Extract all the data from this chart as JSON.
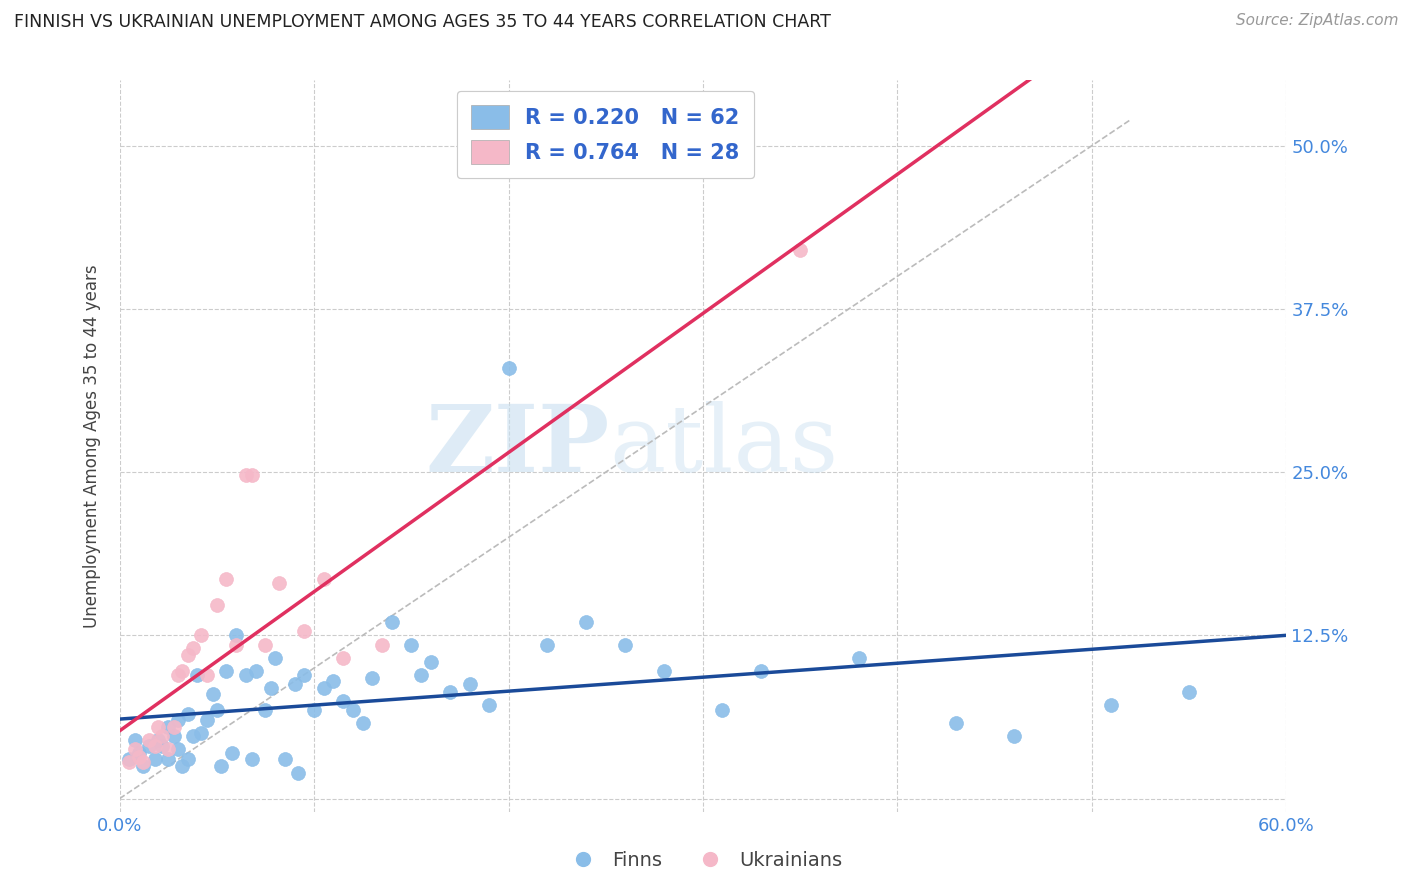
{
  "title": "FINNISH VS UKRAINIAN UNEMPLOYMENT AMONG AGES 35 TO 44 YEARS CORRELATION CHART",
  "source": "Source: ZipAtlas.com",
  "ylabel": "Unemployment Among Ages 35 to 44 years",
  "xlim": [
    0.0,
    0.6
  ],
  "ylim": [
    -0.01,
    0.55
  ],
  "xticks": [
    0.0,
    0.1,
    0.2,
    0.3,
    0.4,
    0.5,
    0.6
  ],
  "xticklabels": [
    "0.0%",
    "",
    "",
    "",
    "",
    "",
    "60.0%"
  ],
  "yticks": [
    0.0,
    0.125,
    0.25,
    0.375,
    0.5
  ],
  "yticklabels": [
    "",
    "12.5%",
    "25.0%",
    "37.5%",
    "50.0%"
  ],
  "grid_color": "#cccccc",
  "background_color": "#ffffff",
  "watermark_zip": "ZIP",
  "watermark_atlas": "atlas",
  "finn_color": "#8abde8",
  "ukr_color": "#f5b8c8",
  "finn_line_color": "#1a4a99",
  "ukr_line_color": "#e03060",
  "diagonal_color": "#bbbbbb",
  "finns_x": [
    0.005,
    0.008,
    0.01,
    0.012,
    0.015,
    0.018,
    0.02,
    0.022,
    0.025,
    0.025,
    0.028,
    0.03,
    0.03,
    0.032,
    0.035,
    0.035,
    0.038,
    0.04,
    0.042,
    0.045,
    0.048,
    0.05,
    0.052,
    0.055,
    0.058,
    0.06,
    0.065,
    0.068,
    0.07,
    0.075,
    0.078,
    0.08,
    0.085,
    0.09,
    0.092,
    0.095,
    0.1,
    0.105,
    0.11,
    0.115,
    0.12,
    0.125,
    0.13,
    0.14,
    0.15,
    0.155,
    0.16,
    0.17,
    0.18,
    0.19,
    0.2,
    0.22,
    0.24,
    0.26,
    0.28,
    0.31,
    0.33,
    0.38,
    0.43,
    0.46,
    0.51,
    0.55
  ],
  "finns_y": [
    0.03,
    0.045,
    0.035,
    0.025,
    0.04,
    0.03,
    0.045,
    0.04,
    0.055,
    0.03,
    0.048,
    0.06,
    0.038,
    0.025,
    0.065,
    0.03,
    0.048,
    0.095,
    0.05,
    0.06,
    0.08,
    0.068,
    0.025,
    0.098,
    0.035,
    0.125,
    0.095,
    0.03,
    0.098,
    0.068,
    0.085,
    0.108,
    0.03,
    0.088,
    0.02,
    0.095,
    0.068,
    0.085,
    0.09,
    0.075,
    0.068,
    0.058,
    0.092,
    0.135,
    0.118,
    0.095,
    0.105,
    0.082,
    0.088,
    0.072,
    0.33,
    0.118,
    0.135,
    0.118,
    0.098,
    0.068,
    0.098,
    0.108,
    0.058,
    0.048,
    0.072,
    0.082
  ],
  "ukrs_x": [
    0.005,
    0.008,
    0.01,
    0.012,
    0.015,
    0.018,
    0.02,
    0.022,
    0.025,
    0.028,
    0.03,
    0.032,
    0.035,
    0.038,
    0.042,
    0.045,
    0.05,
    0.055,
    0.06,
    0.065,
    0.068,
    0.075,
    0.082,
    0.095,
    0.105,
    0.115,
    0.135,
    0.35
  ],
  "ukrs_y": [
    0.028,
    0.038,
    0.032,
    0.028,
    0.045,
    0.04,
    0.055,
    0.048,
    0.038,
    0.055,
    0.095,
    0.098,
    0.11,
    0.115,
    0.125,
    0.095,
    0.148,
    0.168,
    0.118,
    0.248,
    0.248,
    0.118,
    0.165,
    0.128,
    0.168,
    0.108,
    0.118,
    0.42
  ]
}
